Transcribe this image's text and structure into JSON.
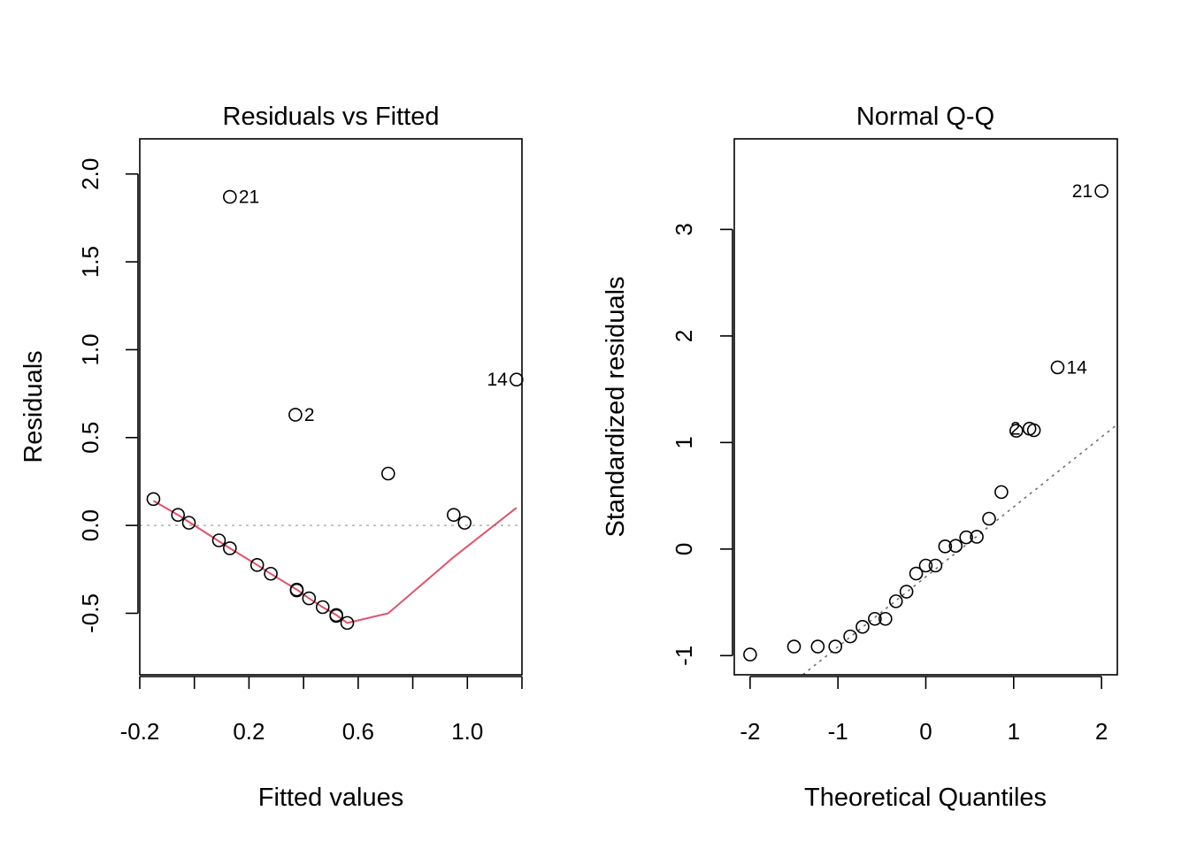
{
  "chart_data": [
    {
      "type": "scatter",
      "title": "Residuals vs Fitted",
      "xlabel": "Fitted values",
      "ylabel": "Residuals",
      "xlim": [
        -0.2,
        1.2
      ],
      "ylim": [
        -0.85,
        2.2
      ],
      "x_ticks": [
        -0.2,
        0.2,
        0.6,
        1.0
      ],
      "x_ticks_minor": [
        0.0,
        0.4,
        0.8,
        1.2
      ],
      "x_tick_labels": [
        "-0.2",
        "0.2",
        "0.6",
        "1.0"
      ],
      "y_ticks": [
        -0.5,
        0.0,
        0.5,
        1.0,
        1.5,
        2.0
      ],
      "y_tick_labels": [
        "-0.5",
        "0.0",
        "0.5",
        "1.0",
        "1.5",
        "2.0"
      ],
      "reference_line": {
        "y": 0,
        "style": "dotted",
        "color": "#b0b0b0"
      },
      "points": [
        {
          "x": -0.15,
          "y": 0.15
        },
        {
          "x": -0.06,
          "y": 0.06
        },
        {
          "x": -0.02,
          "y": 0.015
        },
        {
          "x": 0.09,
          "y": -0.085
        },
        {
          "x": 0.13,
          "y": -0.13
        },
        {
          "x": 0.23,
          "y": -0.225
        },
        {
          "x": 0.28,
          "y": -0.275
        },
        {
          "x": 0.375,
          "y": -0.365
        },
        {
          "x": 0.375,
          "y": -0.37
        },
        {
          "x": 0.42,
          "y": -0.415
        },
        {
          "x": 0.47,
          "y": -0.465
        },
        {
          "x": 0.52,
          "y": -0.51
        },
        {
          "x": 0.52,
          "y": -0.515
        },
        {
          "x": 0.56,
          "y": -0.555
        },
        {
          "x": 0.71,
          "y": 0.295
        },
        {
          "x": 0.95,
          "y": 0.06
        },
        {
          "x": 0.99,
          "y": 0.015
        },
        {
          "x": 0.13,
          "y": 1.87,
          "label": "21",
          "label_side": "right"
        },
        {
          "x": 0.37,
          "y": 0.63,
          "label": "2",
          "label_side": "right"
        },
        {
          "x": 1.18,
          "y": 0.83,
          "label": "14",
          "label_side": "left"
        }
      ],
      "smooth_line": {
        "color": "#df536b",
        "x": [
          -0.15,
          -0.06,
          -0.02,
          0.09,
          0.13,
          0.23,
          0.28,
          0.375,
          0.42,
          0.47,
          0.52,
          0.56,
          0.71,
          0.95,
          1.18
        ],
        "y": [
          0.14,
          0.06,
          0.02,
          -0.09,
          -0.13,
          -0.225,
          -0.275,
          -0.365,
          -0.415,
          -0.465,
          -0.51,
          -0.555,
          -0.5,
          -0.18,
          0.1
        ]
      }
    },
    {
      "type": "scatter",
      "title": "Normal Q-Q",
      "xlabel": "Theoretical Quantiles",
      "ylabel": "Standardized residuals",
      "xlim": [
        -2.18,
        2.18
      ],
      "ylim": [
        -1.18,
        3.85
      ],
      "x_ticks": [
        -2,
        -1,
        0,
        1,
        2
      ],
      "x_tick_labels": [
        "-2",
        "-1",
        "0",
        "1",
        "2"
      ],
      "y_ticks": [
        -1,
        0,
        1,
        2,
        3
      ],
      "y_tick_labels": [
        "-1",
        "0",
        "1",
        "2",
        "3"
      ],
      "reference_line": {
        "x": [
          -1.4,
          2.18
        ],
        "y": [
          -1.18,
          1.17
        ],
        "style": "dotted",
        "color": "#707070"
      },
      "points": [
        {
          "x": -2.0,
          "y": -0.99
        },
        {
          "x": -1.5,
          "y": -0.915
        },
        {
          "x": -1.23,
          "y": -0.915
        },
        {
          "x": -1.03,
          "y": -0.915
        },
        {
          "x": -0.86,
          "y": -0.82
        },
        {
          "x": -0.72,
          "y": -0.73
        },
        {
          "x": -0.58,
          "y": -0.655
        },
        {
          "x": -0.46,
          "y": -0.655
        },
        {
          "x": -0.34,
          "y": -0.49
        },
        {
          "x": -0.22,
          "y": -0.4
        },
        {
          "x": -0.11,
          "y": -0.23
        },
        {
          "x": 0.0,
          "y": -0.155
        },
        {
          "x": 0.11,
          "y": -0.155
        },
        {
          "x": 0.22,
          "y": 0.025
        },
        {
          "x": 0.34,
          "y": 0.03
        },
        {
          "x": 0.46,
          "y": 0.11
        },
        {
          "x": 0.58,
          "y": 0.115
        },
        {
          "x": 0.72,
          "y": 0.285
        },
        {
          "x": 0.86,
          "y": 0.535
        },
        {
          "x": 1.03,
          "y": 1.11
        },
        {
          "x": 1.23,
          "y": 1.115
        },
        {
          "x": 1.18,
          "y": 1.13,
          "label": "2",
          "label_side": "left"
        },
        {
          "x": 1.5,
          "y": 1.705,
          "label": "14",
          "label_side": "right"
        },
        {
          "x": 2.0,
          "y": 3.36,
          "label": "21",
          "label_side": "left"
        }
      ]
    }
  ]
}
